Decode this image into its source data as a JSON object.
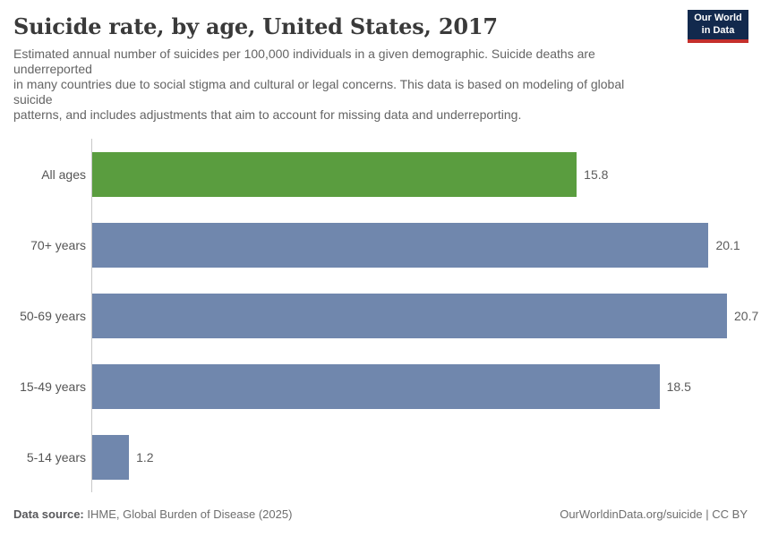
{
  "header": {
    "title": "Suicide rate, by age, United States, 2017",
    "subtitle": "Estimated annual number of suicides per 100,000 individuals in a given demographic. Suicide deaths are\nunderreported\nin many countries due to social stigma and cultural or legal concerns. This data is based on modeling of global\nsuicide\npatterns, and includes adjustments that aim to account for missing data and underreporting.",
    "logo": {
      "line1": "Our World",
      "line2": "in Data"
    }
  },
  "chart_data": {
    "type": "bar",
    "orientation": "horizontal",
    "title": "Suicide rate, by age, United States, 2017",
    "categories": [
      "All ages",
      "70+ years",
      "50-69 years",
      "15-49 years",
      "5-14 years"
    ],
    "values": [
      15.8,
      20.1,
      20.7,
      18.5,
      1.2
    ],
    "value_labels": [
      "15.8",
      "20.1",
      "20.7",
      "18.5",
      "1.2"
    ],
    "bar_colors": [
      "#5a9d3f",
      "#7087ad",
      "#7087ad",
      "#7087ad",
      "#7087ad"
    ],
    "xlabel": "",
    "ylabel": "",
    "xlim": [
      0,
      21.7
    ],
    "grid": false,
    "legend": false,
    "unit": "suicides per 100,000 individuals"
  },
  "colors": {
    "highlight_green": "#5a9d3f",
    "bar_blue": "#7087ad",
    "axis_line": "#c8c8c8",
    "logo_navy": "#12294d",
    "logo_red": "#c5302c"
  },
  "footer": {
    "source_label": "Data source:",
    "source_text": " IHME, Global Burden of Disease (2025)",
    "attribution": "OurWorldinData.org/suicide | CC BY"
  }
}
